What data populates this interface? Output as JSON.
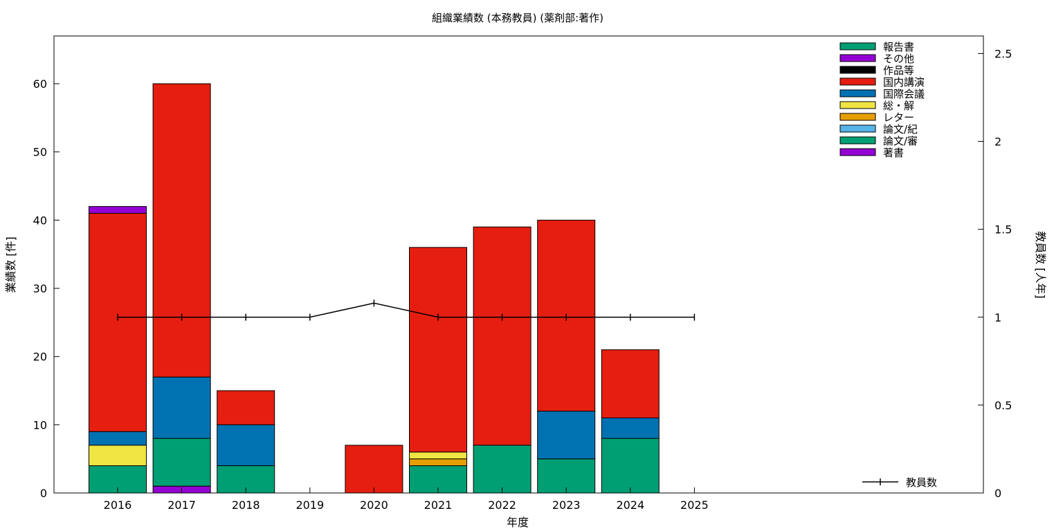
{
  "chart_data": {
    "type": "bar",
    "stacked": true,
    "title": "組織業績数 (本務教員) (薬剤部:著作)",
    "xlabel": "年度",
    "ylabel": "業績数 [件]",
    "y2label": "教員数 [人年]",
    "categories": [
      "2016",
      "2017",
      "2018",
      "2019",
      "2020",
      "2021",
      "2022",
      "2023",
      "2024",
      "2025"
    ],
    "ylim": [
      0,
      67
    ],
    "yticks": [
      0,
      10,
      20,
      30,
      40,
      50,
      60
    ],
    "y2lim": [
      0,
      2.6
    ],
    "y2ticks": [
      0,
      0.5,
      1,
      1.5,
      2,
      2.5
    ],
    "legend_position": "top-right",
    "grid": false,
    "series": [
      {
        "name": "著書",
        "color": "#9400d3",
        "values": [
          0,
          1,
          0,
          0,
          0,
          0,
          0,
          0,
          0,
          0
        ]
      },
      {
        "name": "論文/審",
        "color": "#009e73",
        "values": [
          4,
          7,
          4,
          0,
          0,
          4,
          7,
          5,
          8,
          0
        ]
      },
      {
        "name": "論文/紀",
        "color": "#56b4e9",
        "values": [
          0,
          0,
          0,
          0,
          0,
          0,
          0,
          0,
          0,
          0
        ]
      },
      {
        "name": "レター",
        "color": "#e69f00",
        "values": [
          0,
          0,
          0,
          0,
          0,
          1,
          0,
          0,
          0,
          0
        ]
      },
      {
        "name": "総・解",
        "color": "#f0e442",
        "values": [
          3,
          0,
          0,
          0,
          0,
          1,
          0,
          0,
          0,
          0
        ]
      },
      {
        "name": "国際会議",
        "color": "#0072b2",
        "values": [
          2,
          9,
          6,
          0,
          0,
          0,
          0,
          7,
          3,
          0
        ]
      },
      {
        "name": "国内講演",
        "color": "#e51e10",
        "values": [
          32,
          43,
          5,
          0,
          7,
          30,
          32,
          28,
          10,
          0
        ]
      },
      {
        "name": "作品等",
        "color": "#000000",
        "values": [
          0,
          0,
          0,
          0,
          0,
          0,
          0,
          0,
          0,
          0
        ]
      },
      {
        "name": "その他",
        "color": "#9400d3",
        "values": [
          1,
          0,
          0,
          0,
          0,
          0,
          0,
          0,
          0,
          0
        ]
      },
      {
        "name": "報告書",
        "color": "#009e73",
        "values": [
          0,
          0,
          0,
          0,
          0,
          0,
          0,
          0,
          0,
          0
        ]
      }
    ],
    "legend_order": [
      "報告書",
      "その他",
      "作品等",
      "国内講演",
      "国際会議",
      "総・解",
      "レター",
      "論文/紀",
      "論文/審",
      "著書"
    ],
    "line_series": {
      "name": "教員数",
      "axis": "y2",
      "color": "#000000",
      "values": [
        1,
        1,
        1,
        1,
        1.08,
        1,
        1,
        1,
        1,
        1
      ]
    }
  }
}
